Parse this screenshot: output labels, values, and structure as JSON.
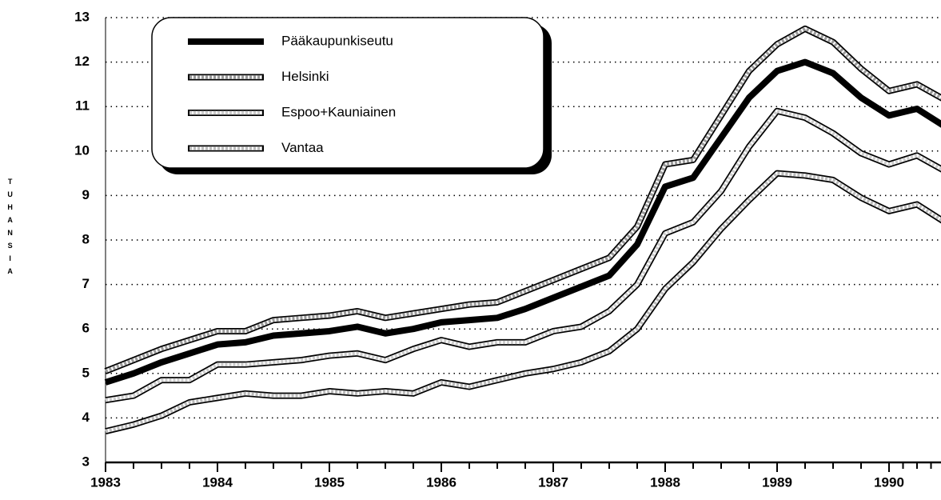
{
  "chart_data": {
    "type": "line",
    "y_label": "TUHANSIA",
    "x": [
      1983,
      1983.25,
      1983.5,
      1983.75,
      1984,
      1984.25,
      1984.5,
      1984.75,
      1985,
      1985.25,
      1985.5,
      1985.75,
      1986,
      1986.25,
      1986.5,
      1986.75,
      1987,
      1987.25,
      1987.5,
      1987.75,
      1988,
      1988.25,
      1988.5,
      1988.75,
      1989,
      1989.25,
      1989.5,
      1989.75,
      1990,
      1990.25,
      1990.5
    ],
    "series": [
      {
        "name": "Pääkaupunkiseutu",
        "color": "#000000",
        "values": [
          4.8,
          5.0,
          5.25,
          5.45,
          5.65,
          5.7,
          5.85,
          5.9,
          5.95,
          6.05,
          5.9,
          6.0,
          6.15,
          6.2,
          6.25,
          6.45,
          6.7,
          6.95,
          7.2,
          7.9,
          9.2,
          9.4,
          10.3,
          11.2,
          11.8,
          12.0,
          11.75,
          11.2,
          10.8,
          10.95,
          10.55
        ]
      },
      {
        "name": "Helsinki",
        "color": "#999999",
        "values": [
          5.05,
          5.3,
          5.55,
          5.75,
          5.95,
          5.95,
          6.2,
          6.25,
          6.3,
          6.4,
          6.25,
          6.35,
          6.45,
          6.55,
          6.6,
          6.85,
          7.1,
          7.35,
          7.6,
          8.3,
          9.7,
          9.8,
          10.8,
          11.8,
          12.4,
          12.75,
          12.45,
          11.85,
          11.35,
          11.5,
          11.15
        ]
      },
      {
        "name": "Espoo+Kauniainen",
        "color": "#cccccc",
        "values": [
          4.4,
          4.5,
          4.85,
          4.85,
          5.2,
          5.2,
          5.25,
          5.3,
          5.4,
          5.45,
          5.3,
          5.55,
          5.75,
          5.6,
          5.7,
          5.7,
          5.95,
          6.05,
          6.4,
          7.0,
          8.15,
          8.4,
          9.1,
          10.1,
          10.9,
          10.75,
          10.4,
          9.95,
          9.7,
          9.9,
          9.55
        ]
      },
      {
        "name": "Vantaa",
        "color": "#bbbbbb",
        "values": [
          3.7,
          3.85,
          4.05,
          4.35,
          4.45,
          4.55,
          4.5,
          4.5,
          4.6,
          4.55,
          4.6,
          4.55,
          4.8,
          4.7,
          4.85,
          5.0,
          5.1,
          5.25,
          5.5,
          6.0,
          6.9,
          7.5,
          8.25,
          8.9,
          9.5,
          9.45,
          9.35,
          8.95,
          8.65,
          8.8,
          8.4
        ]
      }
    ],
    "xlim": [
      1983,
      1990.5
    ],
    "xticks": [
      1983,
      1984,
      1985,
      1986,
      1987,
      1988,
      1989,
      1990
    ],
    "ylim": [
      3,
      13
    ],
    "yticks": [
      3,
      4,
      5,
      6,
      7,
      8,
      9,
      10,
      11,
      12,
      13
    ],
    "grid": true,
    "legend": "top-left"
  }
}
